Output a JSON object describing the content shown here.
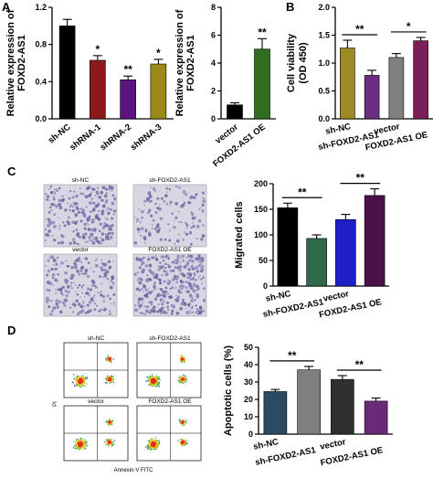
{
  "panels": {
    "A": "A",
    "B": "B",
    "C": "C",
    "D": "D"
  },
  "chart_data": [
    {
      "id": "A1",
      "type": "bar",
      "categories": [
        "sh-NC",
        "shRNA-1",
        "shRNA-2",
        "shRNA-3"
      ],
      "values": [
        1.0,
        0.63,
        0.42,
        0.59
      ],
      "errors": [
        0.07,
        0.05,
        0.04,
        0.05
      ],
      "colors": [
        "#000000",
        "#8b1a1a",
        "#5b1380",
        "#9a8a17"
      ],
      "significance": [
        "",
        "*",
        "**",
        "*"
      ],
      "ylabel": "Relative expression of FOXD2-AS1",
      "ylim": [
        0,
        1.2
      ],
      "yticks": [
        "0.0",
        "0.4",
        "0.8",
        "1.2"
      ],
      "ytick_values": [
        0,
        0.4,
        0.8,
        1.2
      ]
    },
    {
      "id": "A2",
      "type": "bar",
      "categories": [
        "vector",
        "FOXD2-AS1 OE"
      ],
      "values": [
        1.0,
        5.0
      ],
      "errors": [
        0.15,
        0.75
      ],
      "colors": [
        "#000000",
        "#2f6f1f"
      ],
      "significance": [
        "",
        "**"
      ],
      "ylabel": "Relative expression of FOXD2-AS1",
      "ylim": [
        0,
        8
      ],
      "yticks": [
        "0",
        "2",
        "4",
        "6",
        "8"
      ],
      "ytick_values": [
        0,
        2,
        4,
        6,
        8
      ]
    },
    {
      "id": "B",
      "type": "bar",
      "categories": [
        "sh-NC",
        "sh-FOXD2-AS1",
        "vector",
        "FOXD2-AS1 OE"
      ],
      "values": [
        1.27,
        0.78,
        1.1,
        1.4
      ],
      "errors": [
        0.14,
        0.09,
        0.07,
        0.06
      ],
      "colors": [
        "#9c8a26",
        "#6b2d82",
        "#808080",
        "#7a1f58"
      ],
      "brackets": [
        {
          "from": 0,
          "to": 1,
          "label": "**"
        },
        {
          "from": 2,
          "to": 3,
          "label": "*"
        }
      ],
      "ylabel": "Cell viability (OD 450)",
      "ylim": [
        0,
        2.0
      ],
      "yticks": [
        "0.0",
        "0.5",
        "1.0",
        "1.5",
        "2.0"
      ],
      "ytick_values": [
        0,
        0.5,
        1.0,
        1.5,
        2.0
      ]
    },
    {
      "id": "C",
      "type": "bar",
      "categories": [
        "sh-NC",
        "sh-FOXD2-AS1",
        "vector",
        "FOXD2-AS1 OE"
      ],
      "values": [
        153,
        93,
        130,
        177
      ],
      "errors": [
        9,
        7,
        10,
        13
      ],
      "colors": [
        "#000000",
        "#2f6b4b",
        "#1f1fc8",
        "#4a1048"
      ],
      "brackets": [
        {
          "from": 0,
          "to": 1,
          "label": "**"
        },
        {
          "from": 2,
          "to": 3,
          "label": "**"
        }
      ],
      "ylabel": "Migrated cells",
      "ylim": [
        0,
        200
      ],
      "yticks": [
        "0",
        "50",
        "100",
        "150",
        "200"
      ],
      "ytick_values": [
        0,
        50,
        100,
        150,
        200
      ]
    },
    {
      "id": "D",
      "type": "bar",
      "categories": [
        "sh-NC",
        "sh-FOXD2-AS1",
        "vector",
        "FOXD2-AS1 OE"
      ],
      "values": [
        24.5,
        37,
        31.5,
        19
      ],
      "errors": [
        1.2,
        2.0,
        2.2,
        1.8
      ],
      "colors": [
        "#2c4a60",
        "#7f7f7f",
        "#303030",
        "#6a2a78"
      ],
      "brackets": [
        {
          "from": 0,
          "to": 1,
          "label": "**"
        },
        {
          "from": 2,
          "to": 3,
          "label": "**"
        }
      ],
      "ylabel": "Apoptotic cells (%)",
      "ylim": [
        0,
        50
      ],
      "yticks": [
        "0",
        "10",
        "20",
        "30",
        "40",
        "50"
      ],
      "ytick_values": [
        0,
        10,
        20,
        30,
        40,
        50
      ]
    }
  ],
  "micrographs": {
    "titles": [
      "sh-NC",
      "sh-FOXD2-AS1",
      "vector",
      "FOXD2-AS1 OE"
    ]
  },
  "flow": {
    "titles": [
      "sh-NC",
      "sh-FOXD2-AS1",
      "vector",
      "FOXD2-AS1 OE"
    ],
    "xlabel": "Annexin-V FITC",
    "ylabel": "PI"
  }
}
